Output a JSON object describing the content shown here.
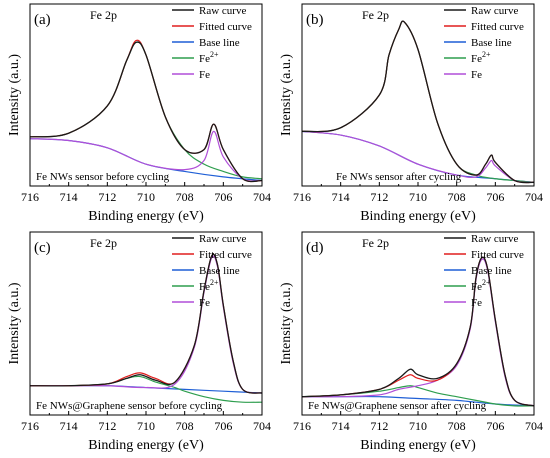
{
  "chart_data": [
    {
      "panel_label": "(a)",
      "type": "line",
      "title": "Fe 2p",
      "annotation": "Fe NWs sensor before cycling",
      "xlabel": "Binding energy (eV)",
      "ylabel": "Intensity (a.u.)",
      "xlim": [
        716,
        704
      ],
      "x_ticks": [
        716,
        714,
        712,
        710,
        708,
        706,
        704
      ],
      "xscale": "reversed",
      "ylim": [
        0,
        1
      ],
      "y_ticks_shown": false,
      "grid": false,
      "legend_position": "top-right",
      "legend": [
        "Raw curve",
        "Fitted curve",
        "Base line",
        "Fe2+",
        "Fe"
      ],
      "series": [
        {
          "name": "Raw curve",
          "color": "#1a1a1a",
          "x": [
            716,
            714,
            712,
            711,
            710.5,
            710,
            709,
            708,
            707,
            706.5,
            706,
            705,
            704
          ],
          "y": [
            0.27,
            0.29,
            0.44,
            0.69,
            0.79,
            0.72,
            0.38,
            0.2,
            0.2,
            0.34,
            0.2,
            0.04,
            0.03
          ]
        },
        {
          "name": "Fitted curve",
          "color": "#e01e1e",
          "x": [
            716,
            714,
            712,
            711,
            710.5,
            710,
            709,
            708,
            707,
            706.5,
            706,
            705,
            704
          ],
          "y": [
            0.27,
            0.29,
            0.44,
            0.69,
            0.8,
            0.72,
            0.38,
            0.2,
            0.2,
            0.34,
            0.2,
            0.04,
            0.03
          ]
        },
        {
          "name": "Base line",
          "color": "#1f5fd6",
          "x": [
            716,
            714,
            712,
            710,
            708,
            706,
            704
          ],
          "y": [
            0.26,
            0.25,
            0.21,
            0.12,
            0.08,
            0.05,
            0.03
          ]
        },
        {
          "name": "Fe2+",
          "color": "#2e9e4e",
          "x": [
            716,
            714,
            712,
            711,
            710.5,
            710,
            709,
            708,
            707,
            706,
            705,
            704
          ],
          "y": [
            0.27,
            0.29,
            0.44,
            0.69,
            0.79,
            0.72,
            0.38,
            0.2,
            0.12,
            0.08,
            0.05,
            0.04
          ]
        },
        {
          "name": "Fe",
          "color": "#b04fd8",
          "x": [
            716,
            714,
            712,
            710,
            708,
            707,
            706.5,
            706,
            705,
            704
          ],
          "y": [
            0.26,
            0.25,
            0.21,
            0.12,
            0.09,
            0.14,
            0.3,
            0.16,
            0.04,
            0.03
          ]
        }
      ]
    },
    {
      "panel_label": "(b)",
      "type": "line",
      "title": "Fe 2p",
      "annotation": "Fe NWs sensor after cycling",
      "xlabel": "Binding energy (eV)",
      "ylabel": "Intensity (a.u.)",
      "xlim": [
        716,
        704
      ],
      "x_ticks": [
        716,
        714,
        712,
        710,
        708,
        706,
        704
      ],
      "xscale": "reversed",
      "ylim": [
        0,
        1
      ],
      "y_ticks_shown": false,
      "grid": false,
      "legend_position": "top-right",
      "legend": [
        "Raw curve",
        "Fitted curve",
        "Base line",
        "Fe2+",
        "Fe"
      ],
      "series": [
        {
          "name": "Raw curve",
          "color": "#1a1a1a",
          "x": [
            716,
            714,
            712,
            711.5,
            711,
            710.7,
            710,
            709,
            708,
            707,
            706.5,
            706.2,
            706,
            705,
            704
          ],
          "y": [
            0.3,
            0.32,
            0.5,
            0.72,
            0.86,
            0.9,
            0.75,
            0.35,
            0.12,
            0.06,
            0.12,
            0.17,
            0.13,
            0.03,
            0.02
          ]
        },
        {
          "name": "Fitted curve",
          "color": "#e01e1e",
          "x": [
            716,
            714,
            712,
            711.5,
            711,
            710.7,
            710,
            709,
            708,
            707,
            706.5,
            706.2,
            706,
            705,
            704
          ],
          "y": [
            0.3,
            0.32,
            0.5,
            0.72,
            0.86,
            0.9,
            0.75,
            0.35,
            0.12,
            0.06,
            0.12,
            0.17,
            0.13,
            0.03,
            0.02
          ]
        },
        {
          "name": "Base line",
          "color": "#1f5fd6",
          "x": [
            716,
            714,
            712,
            710,
            708,
            706,
            704
          ],
          "y": [
            0.3,
            0.28,
            0.22,
            0.12,
            0.06,
            0.04,
            0.02
          ]
        },
        {
          "name": "Fe2+",
          "color": "#2e9e4e",
          "x": [
            716,
            714,
            712,
            711.5,
            711,
            710.7,
            710,
            709,
            708,
            707,
            706,
            705,
            704
          ],
          "y": [
            0.3,
            0.32,
            0.5,
            0.72,
            0.86,
            0.9,
            0.75,
            0.35,
            0.12,
            0.06,
            0.04,
            0.03,
            0.02
          ]
        },
        {
          "name": "Fe",
          "color": "#b04fd8",
          "x": [
            716,
            714,
            712,
            710,
            708,
            707,
            706.5,
            706.2,
            706,
            705,
            704
          ],
          "y": [
            0.3,
            0.28,
            0.22,
            0.12,
            0.06,
            0.05,
            0.1,
            0.14,
            0.11,
            0.03,
            0.02
          ]
        }
      ]
    },
    {
      "panel_label": "(c)",
      "type": "line",
      "title": "Fe 2p",
      "annotation": "Fe NWs@Graphene sensor before cycling",
      "xlabel": "Binding energy (eV)",
      "ylabel": "Intensity (a.u.)",
      "xlim": [
        716,
        704
      ],
      "x_ticks": [
        716,
        714,
        712,
        710,
        708,
        706,
        704
      ],
      "xscale": "reversed",
      "ylim": [
        0,
        1
      ],
      "y_ticks_shown": false,
      "grid": false,
      "legend_position": "top-right",
      "legend": [
        "Raw curve",
        "Fitted curve",
        "Base line",
        "Fe2+",
        "Fe"
      ],
      "series": [
        {
          "name": "Raw curve",
          "color": "#1a1a1a",
          "x": [
            716,
            714,
            712,
            711,
            710.3,
            709.5,
            708.5,
            707.5,
            707,
            706.6,
            706.3,
            706,
            705.5,
            705,
            704
          ],
          "y": [
            0.16,
            0.16,
            0.17,
            0.2,
            0.22,
            0.19,
            0.18,
            0.38,
            0.68,
            0.87,
            0.82,
            0.6,
            0.3,
            0.14,
            0.12
          ]
        },
        {
          "name": "Fitted curve",
          "color": "#e01e1e",
          "x": [
            716,
            714,
            712,
            711,
            710.3,
            709.5,
            708.5,
            707.5,
            707,
            706.6,
            706.3,
            706,
            705.5,
            705,
            704
          ],
          "y": [
            0.16,
            0.16,
            0.17,
            0.21,
            0.23,
            0.2,
            0.18,
            0.38,
            0.68,
            0.87,
            0.82,
            0.6,
            0.3,
            0.14,
            0.12
          ]
        },
        {
          "name": "Base line",
          "color": "#1f5fd6",
          "x": [
            716,
            714,
            712,
            710,
            708,
            706,
            704
          ],
          "y": [
            0.16,
            0.16,
            0.16,
            0.15,
            0.14,
            0.13,
            0.12
          ]
        },
        {
          "name": "Fe2+",
          "color": "#2e9e4e",
          "x": [
            716,
            714,
            712,
            711,
            710.3,
            709.5,
            708.5,
            708,
            707,
            706,
            705,
            704
          ],
          "y": [
            0.16,
            0.16,
            0.17,
            0.2,
            0.21,
            0.18,
            0.15,
            0.13,
            0.1,
            0.08,
            0.07,
            0.07
          ]
        },
        {
          "name": "Fe",
          "color": "#b04fd8",
          "x": [
            716,
            714,
            712,
            710,
            708.5,
            707.5,
            707,
            706.6,
            706.3,
            706,
            705.5,
            705,
            704
          ],
          "y": [
            0.16,
            0.16,
            0.16,
            0.15,
            0.17,
            0.37,
            0.67,
            0.86,
            0.81,
            0.59,
            0.29,
            0.14,
            0.12
          ]
        }
      ]
    },
    {
      "panel_label": "(d)",
      "type": "line",
      "title": "Fe 2p",
      "annotation": "Fe NWs@Graphene sensor after cycling",
      "xlabel": "Binding energy (eV)",
      "ylabel": "Intensity (a.u.)",
      "xlim": [
        716,
        704
      ],
      "x_ticks": [
        716,
        714,
        712,
        710,
        708,
        706,
        704
      ],
      "xscale": "reversed",
      "ylim": [
        0,
        1
      ],
      "y_ticks_shown": false,
      "grid": false,
      "legend_position": "top-right",
      "legend": [
        "Raw curve",
        "Fitted curve",
        "Base line",
        "Fe2+",
        "Fe"
      ],
      "series": [
        {
          "name": "Raw curve",
          "color": "#1a1a1a",
          "x": [
            716,
            714,
            712,
            711,
            710.4,
            710,
            709,
            708,
            707.3,
            707,
            706.7,
            706.4,
            706,
            705.5,
            705,
            704
          ],
          "y": [
            0.1,
            0.11,
            0.14,
            0.2,
            0.25,
            0.22,
            0.2,
            0.28,
            0.48,
            0.75,
            0.86,
            0.8,
            0.52,
            0.22,
            0.08,
            0.05
          ]
        },
        {
          "name": "Fitted curve",
          "color": "#e01e1e",
          "x": [
            716,
            714,
            712,
            711,
            710.4,
            710,
            709,
            708,
            707.3,
            707,
            706.7,
            706.4,
            706,
            705.5,
            705,
            704
          ],
          "y": [
            0.1,
            0.11,
            0.14,
            0.19,
            0.22,
            0.2,
            0.19,
            0.28,
            0.48,
            0.75,
            0.86,
            0.8,
            0.52,
            0.22,
            0.08,
            0.05
          ]
        },
        {
          "name": "Base line",
          "color": "#1f5fd6",
          "x": [
            716,
            714,
            712,
            710,
            708,
            706,
            704
          ],
          "y": [
            0.1,
            0.1,
            0.1,
            0.09,
            0.08,
            0.06,
            0.05
          ]
        },
        {
          "name": "Fe2+",
          "color": "#2e9e4e",
          "x": [
            716,
            714,
            712,
            711,
            710.4,
            710,
            709,
            708,
            707,
            706,
            705,
            704
          ],
          "y": [
            0.1,
            0.11,
            0.13,
            0.15,
            0.16,
            0.15,
            0.12,
            0.1,
            0.08,
            0.06,
            0.05,
            0.05
          ]
        },
        {
          "name": "Fe",
          "color": "#b04fd8",
          "x": [
            716,
            714,
            712,
            711,
            710,
            709,
            708,
            707.3,
            707,
            706.7,
            706.4,
            706,
            705.5,
            705,
            704
          ],
          "y": [
            0.1,
            0.1,
            0.11,
            0.14,
            0.16,
            0.19,
            0.27,
            0.47,
            0.74,
            0.85,
            0.79,
            0.51,
            0.21,
            0.08,
            0.05
          ]
        }
      ]
    }
  ]
}
